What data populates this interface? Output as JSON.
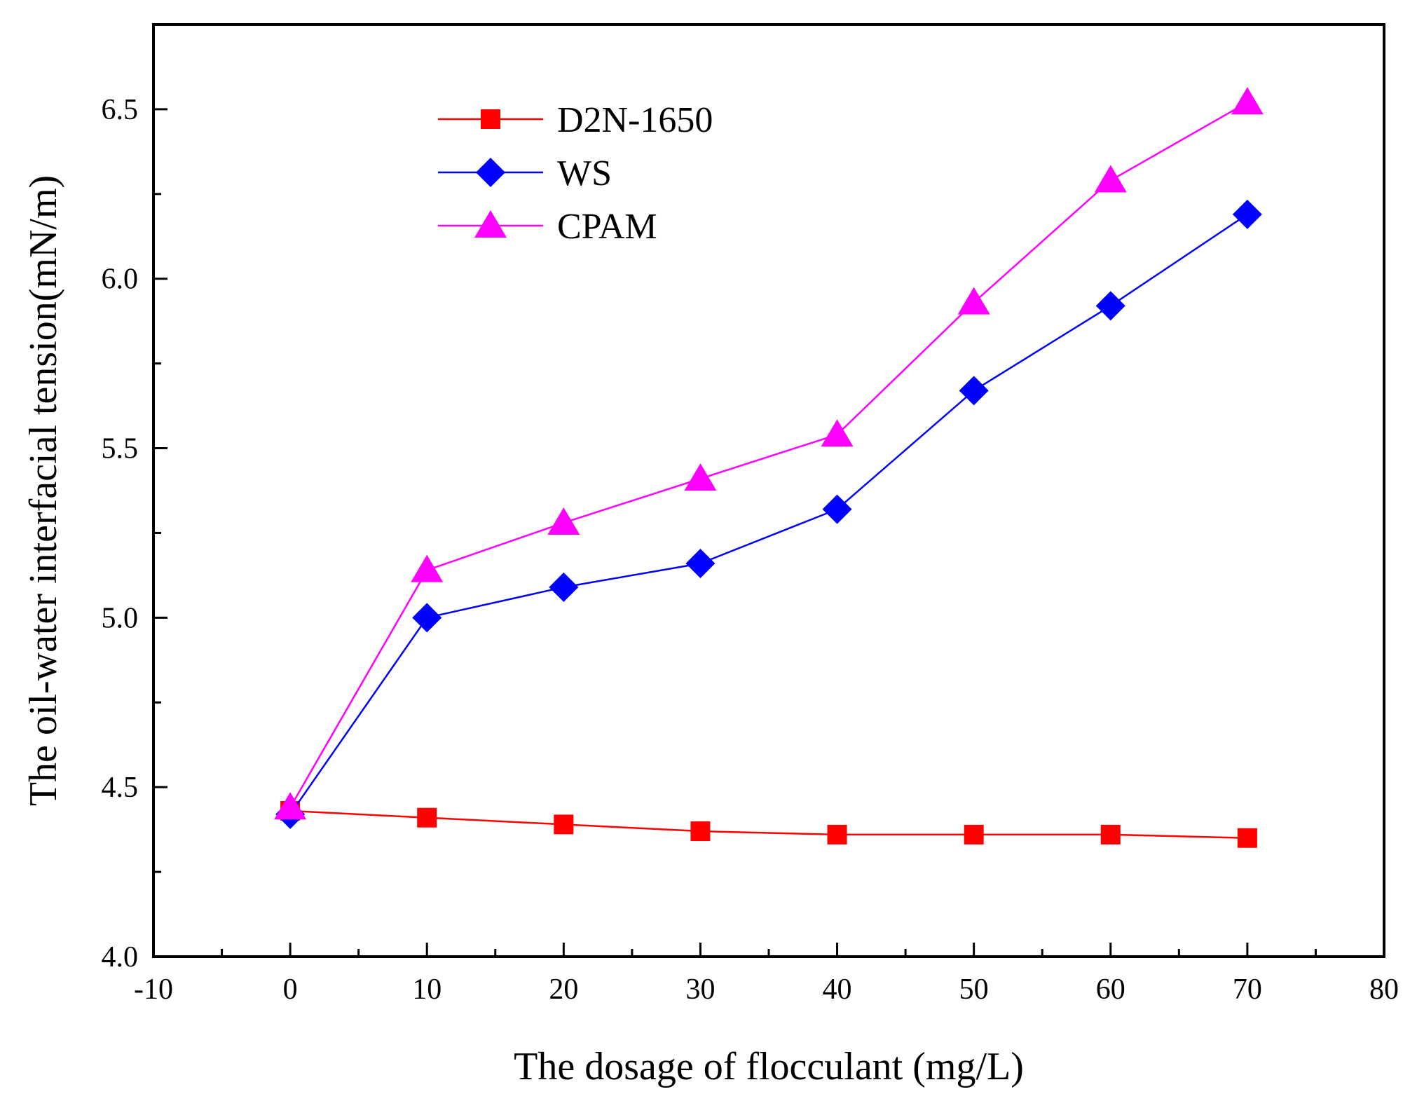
{
  "chart_data": {
    "type": "line",
    "title": "",
    "xlabel": "The dosage of flocculant (mg/L)",
    "ylabel": "The oil-water interfacial tension(mN/m)",
    "xlim": [
      -10,
      80
    ],
    "ylim": [
      4.0,
      6.75
    ],
    "xticks": [
      -10,
      0,
      10,
      20,
      30,
      40,
      50,
      60,
      70,
      80
    ],
    "xtick_labels": [
      "-10",
      "0",
      "10",
      "20",
      "30",
      "40",
      "50",
      "60",
      "70",
      "80"
    ],
    "yticks": [
      4.0,
      4.5,
      5.0,
      5.5,
      6.0,
      6.5
    ],
    "ytick_labels": [
      "4.0",
      "4.5",
      "5.0",
      "5.5",
      "6.0",
      "6.5"
    ],
    "grid": false,
    "legend_position": "top-left",
    "x": [
      0,
      10,
      20,
      30,
      40,
      50,
      60,
      70
    ],
    "series": [
      {
        "name": "D2N-1650",
        "color": "#ff0000",
        "marker": "square",
        "values": [
          4.43,
          4.41,
          4.39,
          4.37,
          4.36,
          4.36,
          4.36,
          4.35
        ]
      },
      {
        "name": "WS",
        "color": "#0000ff",
        "marker": "diamond",
        "values": [
          4.42,
          5.0,
          5.09,
          5.16,
          5.32,
          5.67,
          5.92,
          6.19
        ]
      },
      {
        "name": "CPAM",
        "color": "#ff00ff",
        "marker": "triangle",
        "values": [
          4.44,
          5.14,
          5.28,
          5.41,
          5.54,
          5.93,
          6.29,
          6.52
        ]
      }
    ]
  }
}
